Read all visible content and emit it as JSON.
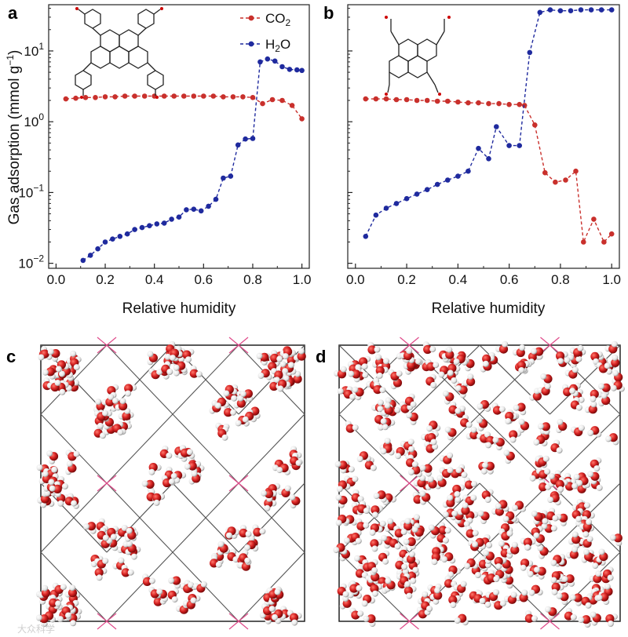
{
  "panels": {
    "a": "a",
    "b": "b",
    "c": "c",
    "d": "d"
  },
  "watermark": "大众科学",
  "colors": {
    "co2": "#c9302c",
    "h2o": "#1f2a9e",
    "water_oxygen": "#d42020",
    "water_hydrogen": "#f2f2f2",
    "framework": "#555555",
    "pink_link": "#e04a8a"
  },
  "chart_data": [
    {
      "type": "line",
      "panel": "a",
      "ylabel": "Gas adsorption (mmol g",
      "ylabel_sup": "−1",
      "ylabel_end": ")",
      "xlabel": "Relative humidity",
      "yscale": "log",
      "xlim": [
        -0.03,
        1.03
      ],
      "ylim": [
        0.0085,
        45
      ],
      "xticks": [
        "0.0",
        "0.2",
        "0.4",
        "0.6",
        "0.8",
        "1.0"
      ],
      "xtick_values": [
        0,
        0.2,
        0.4,
        0.6,
        0.8,
        1.0
      ],
      "yticks": [
        {
          "value": 0.01,
          "base": "10",
          "exp": "−2"
        },
        {
          "value": 0.1,
          "base": "10",
          "exp": "−1"
        },
        {
          "value": 1,
          "base": "10",
          "exp": "0"
        },
        {
          "value": 10,
          "base": "10",
          "exp": "1"
        }
      ],
      "legend": {
        "position": "top-right",
        "entries": [
          {
            "series": "CO2",
            "text": "CO",
            "sub": "2"
          },
          {
            "series": "H2O",
            "text": "H",
            "sub": "2",
            "tail": "O"
          }
        ]
      },
      "series": [
        {
          "name": "CO2",
          "x": [
            0.04,
            0.08,
            0.12,
            0.16,
            0.2,
            0.24,
            0.28,
            0.32,
            0.36,
            0.4,
            0.44,
            0.48,
            0.52,
            0.56,
            0.6,
            0.64,
            0.68,
            0.72,
            0.76,
            0.8,
            0.84,
            0.88,
            0.92,
            0.96,
            1.0
          ],
          "y": [
            2.1,
            2.15,
            2.2,
            2.2,
            2.25,
            2.25,
            2.3,
            2.3,
            2.3,
            2.3,
            2.3,
            2.3,
            2.3,
            2.3,
            2.3,
            2.3,
            2.25,
            2.25,
            2.25,
            2.2,
            1.8,
            2.05,
            2.0,
            1.7,
            1.1
          ]
        },
        {
          "name": "H2O",
          "x": [
            0.11,
            0.14,
            0.17,
            0.2,
            0.23,
            0.26,
            0.29,
            0.32,
            0.35,
            0.38,
            0.41,
            0.44,
            0.47,
            0.5,
            0.53,
            0.56,
            0.59,
            0.62,
            0.65,
            0.68,
            0.71,
            0.74,
            0.77,
            0.8,
            0.83,
            0.86,
            0.89,
            0.92,
            0.95,
            0.98,
            1.0
          ],
          "y": [
            0.011,
            0.013,
            0.016,
            0.02,
            0.022,
            0.024,
            0.026,
            0.03,
            0.032,
            0.034,
            0.036,
            0.037,
            0.042,
            0.045,
            0.057,
            0.058,
            0.055,
            0.064,
            0.08,
            0.16,
            0.17,
            0.47,
            0.57,
            0.58,
            7.0,
            7.7,
            7.2,
            6.0,
            5.5,
            5.4,
            5.3
          ]
        }
      ]
    },
    {
      "type": "line",
      "panel": "b",
      "xlabel": "Relative humidity",
      "yscale": "log",
      "xlim": [
        -0.03,
        1.03
      ],
      "ylim": [
        0.0085,
        45
      ],
      "xticks": [
        "0.0",
        "0.2",
        "0.4",
        "0.6",
        "0.8",
        "1.0"
      ],
      "xtick_values": [
        0,
        0.2,
        0.4,
        0.6,
        0.8,
        1.0
      ],
      "series": [
        {
          "name": "CO2",
          "x": [
            0.04,
            0.08,
            0.12,
            0.16,
            0.2,
            0.24,
            0.28,
            0.32,
            0.36,
            0.4,
            0.44,
            0.48,
            0.52,
            0.56,
            0.6,
            0.64,
            0.66,
            0.7,
            0.74,
            0.78,
            0.82,
            0.86,
            0.89,
            0.93,
            0.97,
            1.0
          ],
          "y": [
            2.1,
            2.1,
            2.1,
            2.05,
            2.05,
            2.0,
            2.0,
            1.95,
            1.95,
            1.9,
            1.85,
            1.85,
            1.8,
            1.8,
            1.75,
            1.75,
            1.7,
            0.9,
            0.19,
            0.14,
            0.15,
            0.2,
            0.02,
            0.042,
            0.02,
            0.026
          ]
        },
        {
          "name": "H2O",
          "x": [
            0.04,
            0.08,
            0.12,
            0.16,
            0.2,
            0.24,
            0.28,
            0.32,
            0.36,
            0.4,
            0.44,
            0.48,
            0.52,
            0.55,
            0.6,
            0.64,
            0.68,
            0.72,
            0.76,
            0.8,
            0.84,
            0.88,
            0.92,
            0.96,
            1.0
          ],
          "y": [
            0.024,
            0.048,
            0.06,
            0.07,
            0.082,
            0.095,
            0.11,
            0.13,
            0.15,
            0.17,
            0.2,
            0.42,
            0.3,
            0.85,
            0.46,
            0.46,
            9.5,
            35,
            38,
            37,
            37,
            38,
            38,
            38,
            38
          ]
        }
      ]
    }
  ]
}
